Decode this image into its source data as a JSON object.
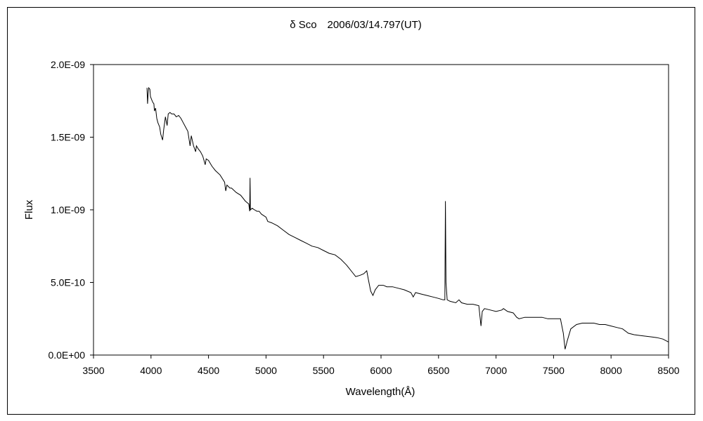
{
  "chart_data": {
    "type": "line",
    "title": "δ Sco　2006/03/14.797(UT)",
    "xlabel": "Wavelength(Å)",
    "ylabel": "Flux",
    "xlim": [
      3500,
      8500
    ],
    "ylim": [
      0,
      2e-09
    ],
    "x_ticks": [
      3500,
      4000,
      4500,
      5000,
      5500,
      6000,
      6500,
      7000,
      7500,
      8000,
      8500
    ],
    "y_ticks": [
      0,
      5e-10,
      1e-09,
      1.5e-09,
      2e-09
    ],
    "y_tick_labels": [
      "0.0E+00",
      "5.0E-10",
      "1.0E-09",
      "1.5E-09",
      "2.0E-09"
    ],
    "grid": false,
    "legend": "none",
    "line_color": "#000000",
    "series": [
      {
        "points": [
          [
            3965,
            1.84e-09
          ],
          [
            3970,
            1.73e-09
          ],
          [
            3975,
            1.8e-09
          ],
          [
            3980,
            1.84e-09
          ],
          [
            3990,
            1.83e-09
          ],
          [
            3995,
            1.78e-09
          ],
          [
            4005,
            1.76e-09
          ],
          [
            4015,
            1.74e-09
          ],
          [
            4025,
            1.73e-09
          ],
          [
            4030,
            1.68e-09
          ],
          [
            4040,
            1.7e-09
          ],
          [
            4050,
            1.63e-09
          ],
          [
            4060,
            1.6e-09
          ],
          [
            4075,
            1.57e-09
          ],
          [
            4085,
            1.52e-09
          ],
          [
            4101,
            1.48e-09
          ],
          [
            4110,
            1.55e-09
          ],
          [
            4125,
            1.64e-09
          ],
          [
            4140,
            1.58e-09
          ],
          [
            4150,
            1.66e-09
          ],
          [
            4165,
            1.67e-09
          ],
          [
            4180,
            1.66e-09
          ],
          [
            4200,
            1.66e-09
          ],
          [
            4220,
            1.64e-09
          ],
          [
            4240,
            1.65e-09
          ],
          [
            4260,
            1.63e-09
          ],
          [
            4280,
            1.6e-09
          ],
          [
            4300,
            1.57e-09
          ],
          [
            4320,
            1.54e-09
          ],
          [
            4340,
            1.44e-09
          ],
          [
            4350,
            1.51e-09
          ],
          [
            4370,
            1.44e-09
          ],
          [
            4388,
            1.4e-09
          ],
          [
            4395,
            1.44e-09
          ],
          [
            4410,
            1.42e-09
          ],
          [
            4430,
            1.4e-09
          ],
          [
            4450,
            1.37e-09
          ],
          [
            4471,
            1.31e-09
          ],
          [
            4480,
            1.35e-09
          ],
          [
            4500,
            1.34e-09
          ],
          [
            4530,
            1.3e-09
          ],
          [
            4560,
            1.27e-09
          ],
          [
            4600,
            1.24e-09
          ],
          [
            4640,
            1.19e-09
          ],
          [
            4650,
            1.13e-09
          ],
          [
            4660,
            1.17e-09
          ],
          [
            4686,
            1.15e-09
          ],
          [
            4700,
            1.15e-09
          ],
          [
            4740,
            1.12e-09
          ],
          [
            4780,
            1.1e-09
          ],
          [
            4820,
            1.06e-09
          ],
          [
            4850,
            1.04e-09
          ],
          [
            4858,
            9.9e-10
          ],
          [
            4861,
            1.22e-09
          ],
          [
            4864,
            1e-09
          ],
          [
            4880,
            1.01e-09
          ],
          [
            4900,
            1e-09
          ],
          [
            4921,
            9.9e-10
          ],
          [
            4940,
            9.9e-10
          ],
          [
            4960,
            9.7e-10
          ],
          [
            5000,
            9.5e-10
          ],
          [
            5015,
            9.2e-10
          ],
          [
            5050,
            9.1e-10
          ],
          [
            5100,
            8.9e-10
          ],
          [
            5150,
            8.6e-10
          ],
          [
            5200,
            8.3e-10
          ],
          [
            5250,
            8.1e-10
          ],
          [
            5300,
            7.9e-10
          ],
          [
            5350,
            7.7e-10
          ],
          [
            5400,
            7.5e-10
          ],
          [
            5450,
            7.4e-10
          ],
          [
            5500,
            7.2e-10
          ],
          [
            5550,
            7e-10
          ],
          [
            5600,
            6.9e-10
          ],
          [
            5650,
            6.6e-10
          ],
          [
            5700,
            6.2e-10
          ],
          [
            5750,
            5.7e-10
          ],
          [
            5780,
            5.4e-10
          ],
          [
            5820,
            5.5e-10
          ],
          [
            5850,
            5.6e-10
          ],
          [
            5876,
            5.8e-10
          ],
          [
            5890,
            5.2e-10
          ],
          [
            5910,
            4.4e-10
          ],
          [
            5930,
            4.1e-10
          ],
          [
            5950,
            4.5e-10
          ],
          [
            5980,
            4.8e-10
          ],
          [
            6020,
            4.8e-10
          ],
          [
            6050,
            4.7e-10
          ],
          [
            6100,
            4.7e-10
          ],
          [
            6150,
            4.6e-10
          ],
          [
            6200,
            4.5e-10
          ],
          [
            6260,
            4.3e-10
          ],
          [
            6280,
            4e-10
          ],
          [
            6300,
            4.3e-10
          ],
          [
            6350,
            4.2e-10
          ],
          [
            6400,
            4.1e-10
          ],
          [
            6450,
            4e-10
          ],
          [
            6500,
            3.9e-10
          ],
          [
            6540,
            3.8e-10
          ],
          [
            6555,
            3.8e-10
          ],
          [
            6560,
            1.06e-09
          ],
          [
            6565,
            5e-10
          ],
          [
            6575,
            3.8e-10
          ],
          [
            6600,
            3.7e-10
          ],
          [
            6650,
            3.6e-10
          ],
          [
            6678,
            3.8e-10
          ],
          [
            6700,
            3.6e-10
          ],
          [
            6750,
            3.5e-10
          ],
          [
            6800,
            3.5e-10
          ],
          [
            6850,
            3.4e-10
          ],
          [
            6869,
            2e-10
          ],
          [
            6880,
            3e-10
          ],
          [
            6900,
            3.2e-10
          ],
          [
            6950,
            3.1e-10
          ],
          [
            7000,
            3e-10
          ],
          [
            7050,
            3.1e-10
          ],
          [
            7065,
            3.2e-10
          ],
          [
            7100,
            3e-10
          ],
          [
            7150,
            2.9e-10
          ],
          [
            7180,
            2.6e-10
          ],
          [
            7200,
            2.5e-10
          ],
          [
            7250,
            2.6e-10
          ],
          [
            7300,
            2.6e-10
          ],
          [
            7350,
            2.6e-10
          ],
          [
            7400,
            2.6e-10
          ],
          [
            7450,
            2.5e-10
          ],
          [
            7500,
            2.5e-10
          ],
          [
            7560,
            2.5e-10
          ],
          [
            7585,
            1.5e-10
          ],
          [
            7600,
            4e-11
          ],
          [
            7620,
            1e-10
          ],
          [
            7650,
            1.8e-10
          ],
          [
            7700,
            2.1e-10
          ],
          [
            7750,
            2.2e-10
          ],
          [
            7800,
            2.2e-10
          ],
          [
            7850,
            2.2e-10
          ],
          [
            7900,
            2.1e-10
          ],
          [
            7950,
            2.1e-10
          ],
          [
            8000,
            2e-10
          ],
          [
            8050,
            1.9e-10
          ],
          [
            8100,
            1.8e-10
          ],
          [
            8150,
            1.5e-10
          ],
          [
            8200,
            1.4e-10
          ],
          [
            8250,
            1.35e-10
          ],
          [
            8300,
            1.3e-10
          ],
          [
            8350,
            1.25e-10
          ],
          [
            8400,
            1.2e-10
          ],
          [
            8450,
            1.1e-10
          ],
          [
            8500,
            9e-11
          ]
        ]
      }
    ]
  }
}
